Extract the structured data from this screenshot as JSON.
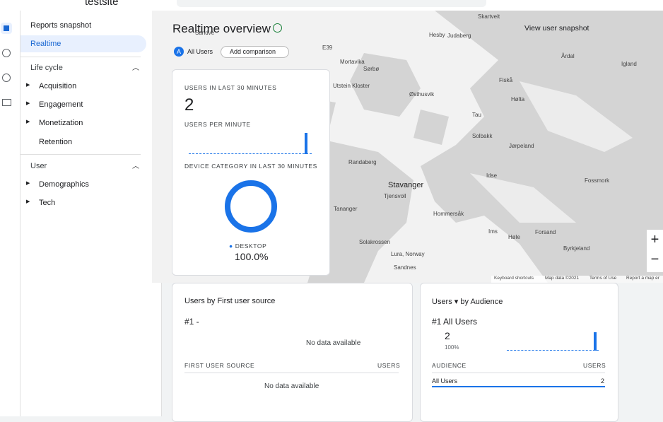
{
  "header": {
    "site": "testsite"
  },
  "nav": {
    "items": [
      "Reports snapshot",
      "Realtime"
    ],
    "lifecycle": {
      "title": "Life cycle",
      "items": [
        "Acquisition",
        "Engagement",
        "Monetization",
        "Retention"
      ]
    },
    "user": {
      "title": "User",
      "items": [
        "Demographics",
        "Tech"
      ]
    }
  },
  "realtime": {
    "title": "Realtime overview",
    "segment": "All Users",
    "segment_badge": "A",
    "add_comparison": "Add comparison",
    "view_snapshot": "View user snapshot"
  },
  "map": {
    "labels": [
      "Skartveit",
      "Sandve",
      "Hesby",
      "Judaberg",
      "Mortavika",
      "Sørbø",
      "E39",
      "Årdal",
      "Igland",
      "Utstein Kloster",
      "Østhusvik",
      "Fiskå",
      "Hølta",
      "Tau",
      "Solbakk",
      "Jørpeland",
      "Randaberg",
      "Idse",
      "Fossmork",
      "Stavanger",
      "Tjensvoll",
      "Tananger",
      "Hommersåk",
      "Ims",
      "Høle",
      "Forsand",
      "Solakrossen",
      "Byrkjeland",
      "Lura, Norway",
      "Sandnes"
    ],
    "attribution": [
      "Keyboard shortcuts",
      "Map data ©2021",
      "Terms of Use",
      "Report a map er"
    ]
  },
  "card_users": {
    "label": "USERS IN LAST 30 MINUTES",
    "value": "2",
    "per_minute": "USERS PER MINUTE",
    "device_label": "DEVICE CATEGORY IN LAST 30 MINUTES",
    "legend": "DESKTOP",
    "percent": "100.0%"
  },
  "card_source": {
    "title": "Users by First user source",
    "rank": "#1  -",
    "no_data": "No data available",
    "col1": "FIRST USER SOURCE",
    "col2": "USERS",
    "no_data_table": "No data available"
  },
  "card_audience": {
    "title_a": "Users",
    "title_b": "by Audience",
    "rank": "#1  All Users",
    "value": "2",
    "percent": "100%",
    "col1": "AUDIENCE",
    "col2": "USERS",
    "row_name": "All Users",
    "row_value": "2"
  }
}
